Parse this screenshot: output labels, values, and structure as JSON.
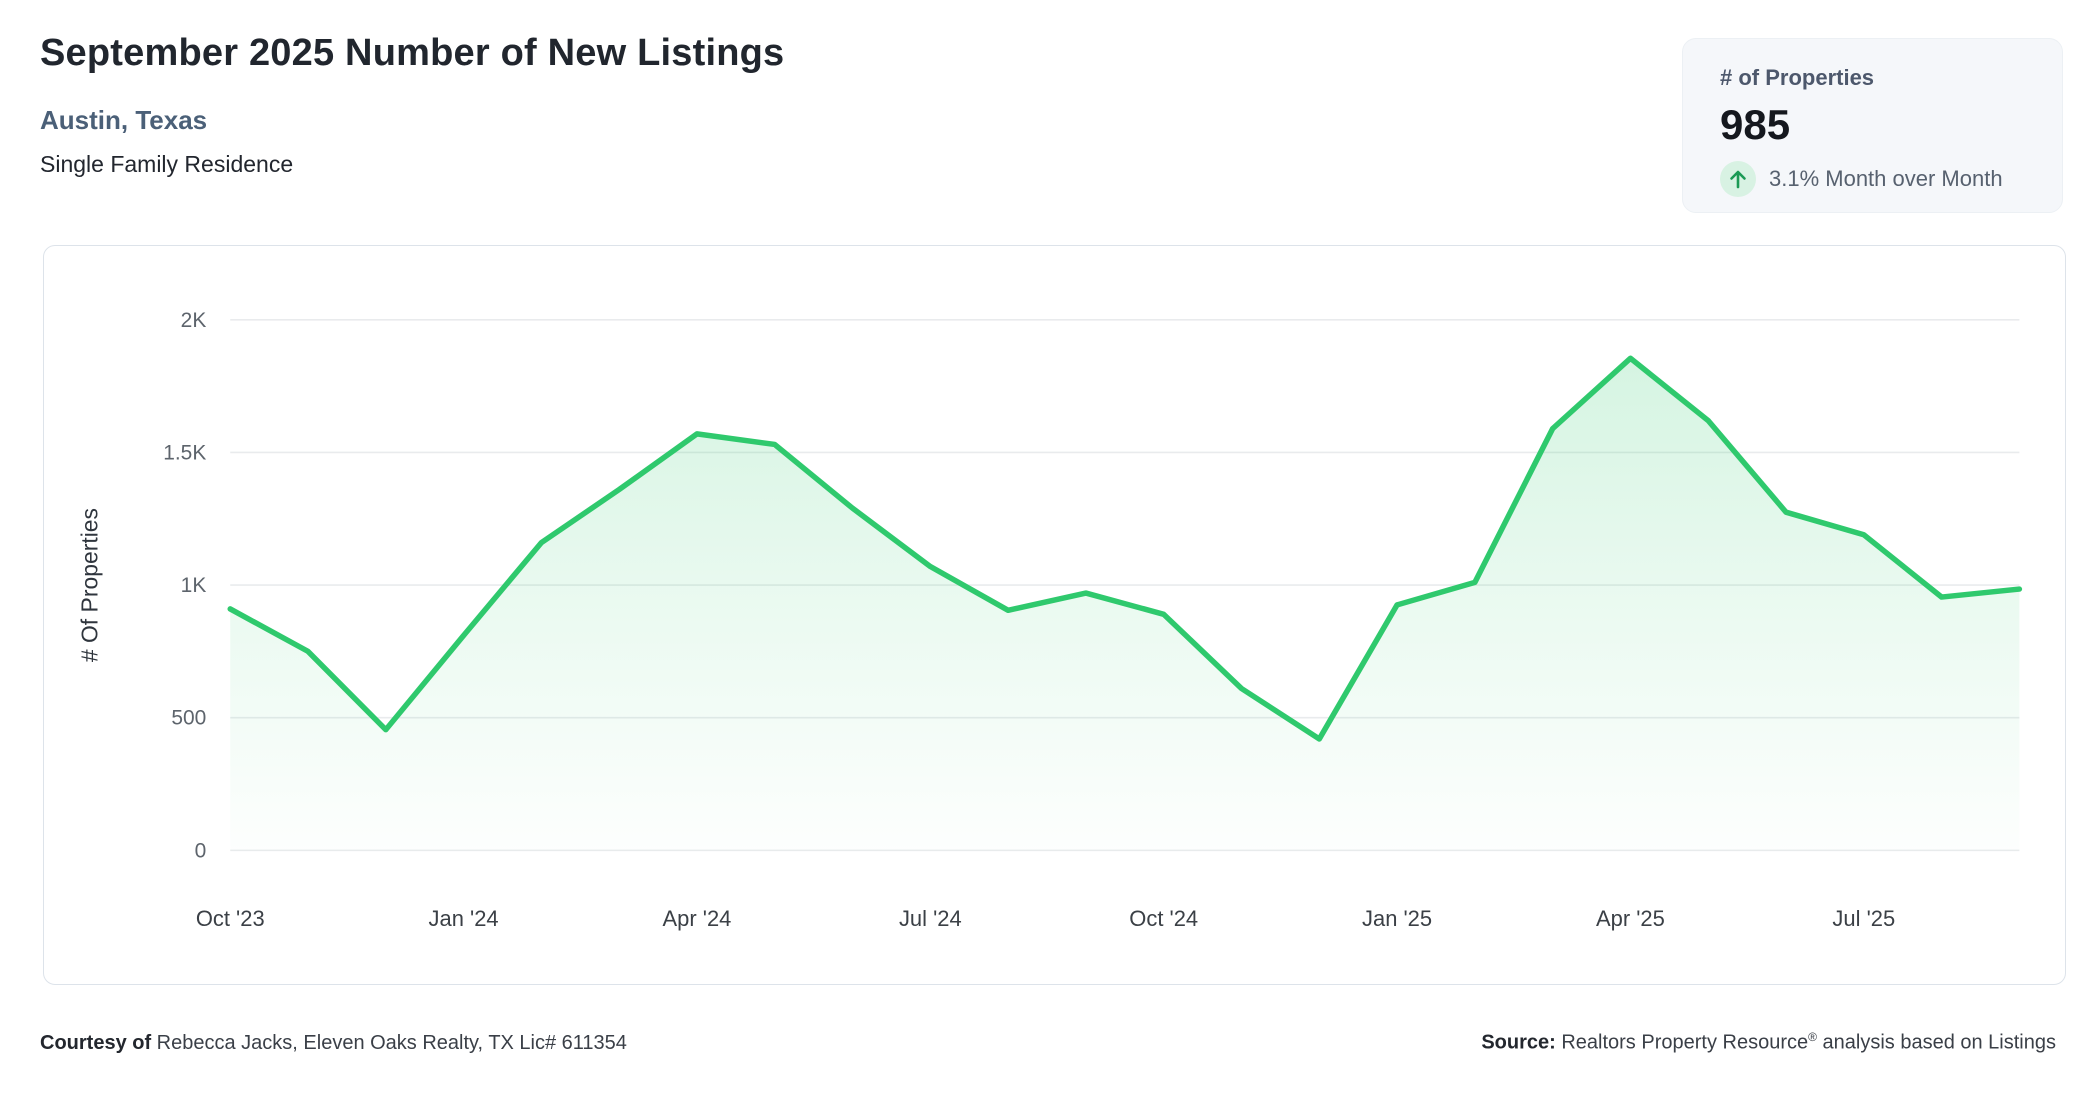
{
  "header": {
    "title": "September 2025 Number of New Listings",
    "location": "Austin, Texas",
    "property_type": "Single Family Residence"
  },
  "stat_card": {
    "label": "# of Properties",
    "value": "985",
    "change_text": "3.1% Month over Month",
    "trend": "up",
    "trend_icon": "arrow-up-icon",
    "trend_color": "#1b9a55",
    "trend_bg": "#d8f2e3"
  },
  "chart_data": {
    "type": "area",
    "title": "September 2025 Number of New Listings — Austin, Texas",
    "x": [
      "Oct '23",
      "Nov '23",
      "Dec '23",
      "Jan '24",
      "Feb '24",
      "Mar '24",
      "Apr '24",
      "May '24",
      "Jun '24",
      "Jul '24",
      "Aug '24",
      "Sep '24",
      "Oct '24",
      "Nov '24",
      "Dec '24",
      "Jan '25",
      "Feb '25",
      "Mar '25",
      "Apr '25",
      "May '25",
      "Jun '25",
      "Jul '25",
      "Aug '25",
      "Sep '25"
    ],
    "values": [
      910,
      750,
      455,
      810,
      1160,
      1360,
      1570,
      1530,
      1290,
      1070,
      905,
      970,
      890,
      610,
      420,
      925,
      1010,
      1590,
      1855,
      1620,
      1275,
      1190,
      955,
      985
    ],
    "x_tick_indices": [
      0,
      3,
      6,
      9,
      12,
      15,
      18,
      21
    ],
    "x_tick_labels": [
      "Oct '23",
      "Jan '24",
      "Apr '24",
      "Jul '24",
      "Oct '24",
      "Jan '25",
      "Apr '25",
      "Jul '25"
    ],
    "y_ticks": [
      {
        "value": 0,
        "label": "0"
      },
      {
        "value": 500,
        "label": "500"
      },
      {
        "value": 1000,
        "label": "1K"
      },
      {
        "value": 1500,
        "label": "1.5K"
      },
      {
        "value": 2000,
        "label": "2K"
      }
    ],
    "xlabel": "",
    "ylabel": "# Of Properties",
    "ylim": [
      0,
      2000
    ],
    "grid": true,
    "legend": "none",
    "line_color": "#2fc96d",
    "fill_color": "#2fc96d",
    "grid_color": "#e9ebed"
  },
  "footer": {
    "courtesy_label": "Courtesy of",
    "courtesy_text": " Rebecca Jacks, Eleven Oaks Realty, TX Lic# 611354",
    "source_label": "Source:",
    "source_text_pre": " Realtors Property Resource",
    "source_reg_mark": "®",
    "source_text_post": " analysis based on Listings"
  }
}
